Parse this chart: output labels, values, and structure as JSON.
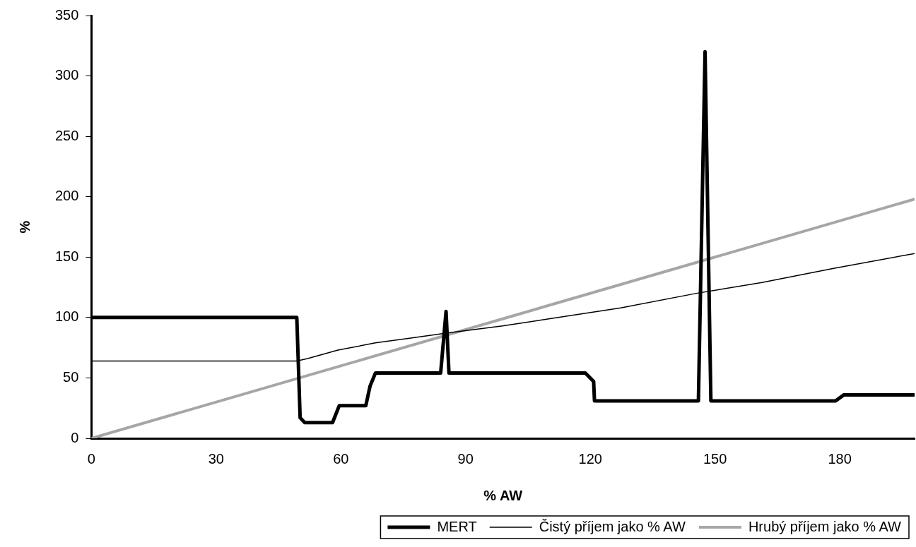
{
  "chart_data": {
    "type": "line",
    "xlabel": "% AW",
    "ylabel": "%",
    "xlim": [
      0,
      198
    ],
    "xticks": [
      0,
      30,
      60,
      90,
      120,
      150,
      180
    ],
    "ylim": [
      0,
      350
    ],
    "yticks": [
      0,
      50,
      100,
      150,
      200,
      250,
      300,
      350
    ],
    "grid": false,
    "legend": "bottom",
    "marker": "none",
    "line_style": "solid",
    "series": [
      {
        "name": "MERT",
        "color": "#000000",
        "x": [
          0,
          49.4,
          50.2,
          51.3,
          58,
          59.6,
          66,
          67,
          68.3,
          84,
          85.3,
          86,
          118.8,
          120.8,
          121,
          146,
          147.6,
          149,
          179,
          181,
          198
        ],
        "values": [
          100,
          100,
          17,
          13,
          13,
          27,
          27,
          43,
          54,
          54,
          105,
          54,
          54,
          47,
          31,
          31,
          320,
          31,
          31,
          36,
          36
        ]
      },
      {
        "name": "Čistý příjem jako % AW",
        "color": "#000000",
        "x": [
          0,
          49.4,
          52,
          59.3,
          68.3,
          76.8,
          85.3,
          98.9,
          110.3,
          127.3,
          145.5,
          161.3,
          178.3,
          198
        ],
        "values": [
          64,
          64,
          66,
          73,
          79,
          83,
          87,
          93,
          99,
          108,
          120,
          129,
          140.5,
          153
        ]
      },
      {
        "name": "Hrubý příjem jako % AW",
        "color": "#a6a6a6",
        "x": [
          0,
          198
        ],
        "values": [
          0,
          198
        ]
      }
    ]
  }
}
